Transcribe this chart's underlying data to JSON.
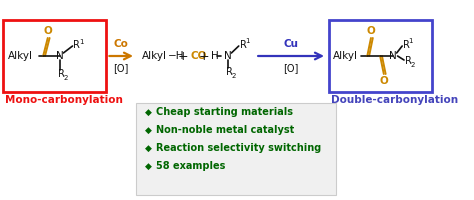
{
  "bg_color": "#ffffff",
  "box_left_color": "#ee1111",
  "box_right_color": "#4444cc",
  "co_color": "#cc7700",
  "cu_color": "#3333bb",
  "mono_color": "#ee1111",
  "double_color": "#4444bb",
  "bullet_color": "#006600",
  "black": "#111111",
  "gold": "#cc8800",
  "mono_label": "Mono-carbonylation",
  "double_label": "Double-carbonylation",
  "bullet_points": [
    "Cheap starting materials",
    "Non-noble metal catalyst",
    "Reaction selectivity switching",
    "58 examples"
  ]
}
